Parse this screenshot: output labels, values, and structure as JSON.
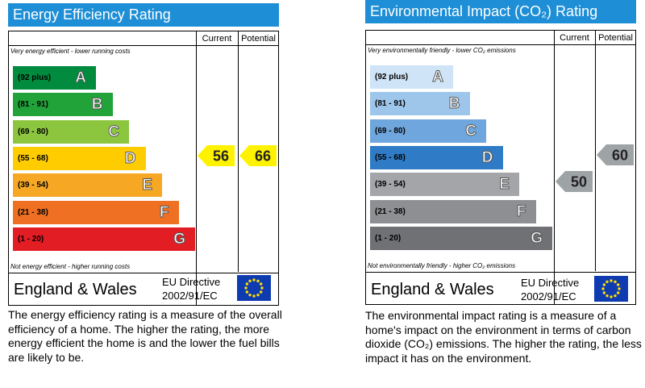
{
  "charts": [
    {
      "title": "Energy Efficiency Rating",
      "col_current": "Current",
      "col_potential": "Potential",
      "top_caption": "Very energy efficient - lower running costs",
      "bottom_caption": "Not energy efficient - higher running costs",
      "region": "England & Wales",
      "directive_line1": "EU Directive",
      "directive_line2": "2002/91/EC",
      "flag_icon": "eu-flag-icon",
      "description": "The energy efficiency rating is a measure of the overall efficiency of a home. The higher the rating, the more energy efficient the home is and the lower the fuel bills are likely to be.",
      "arrow_color": "#fff200"
    },
    {
      "title": "Environmental Impact (CO₂) Rating",
      "col_current": "Current",
      "col_potential": "Potential",
      "top_caption": "Very environmentally friendly - lower CO₂ emissions",
      "bottom_caption": "Not environmentally friendly - higher CO₂ emissions",
      "region": "England & Wales",
      "directive_line1": "EU Directive",
      "directive_line2": "2002/91/EC",
      "flag_icon": "eu-flag-icon",
      "description": "The environmental impact rating is a measure of a home's impact on the environment in terms of carbon dioxide (CO₂) emissions. The higher the rating, the less impact it has on the environment.",
      "arrow_color": "#9ea3a6"
    }
  ],
  "chart_data": [
    {
      "type": "bar",
      "title": "Energy Efficiency Rating",
      "categories": [
        "(92 plus)",
        "(81 - 91)",
        "(69 - 80)",
        "(55 - 68)",
        "(39 - 54)",
        "(21 - 38)",
        "(1 - 20)"
      ],
      "bands": [
        "A",
        "B",
        "C",
        "D",
        "E",
        "F",
        "G"
      ],
      "band_colors": [
        "#008b3f",
        "#22a33a",
        "#8cc63f",
        "#ffcc00",
        "#f6a825",
        "#ef7022",
        "#e31d24"
      ],
      "current": 56,
      "potential": 66
    },
    {
      "type": "bar",
      "title": "Environmental Impact (CO₂) Rating",
      "categories": [
        "(92 plus)",
        "(81 - 91)",
        "(69 - 80)",
        "(55 - 68)",
        "(39 - 54)",
        "(21 - 38)",
        "(1 - 20)"
      ],
      "bands": [
        "A",
        "B",
        "C",
        "D",
        "E",
        "F",
        "G"
      ],
      "band_colors": [
        "#cfe4f6",
        "#9ec6eb",
        "#6fa6dd",
        "#2f7bc5",
        "#a3a5a8",
        "#8d8f92",
        "#6f7174"
      ],
      "current": 50,
      "potential": 60
    }
  ]
}
